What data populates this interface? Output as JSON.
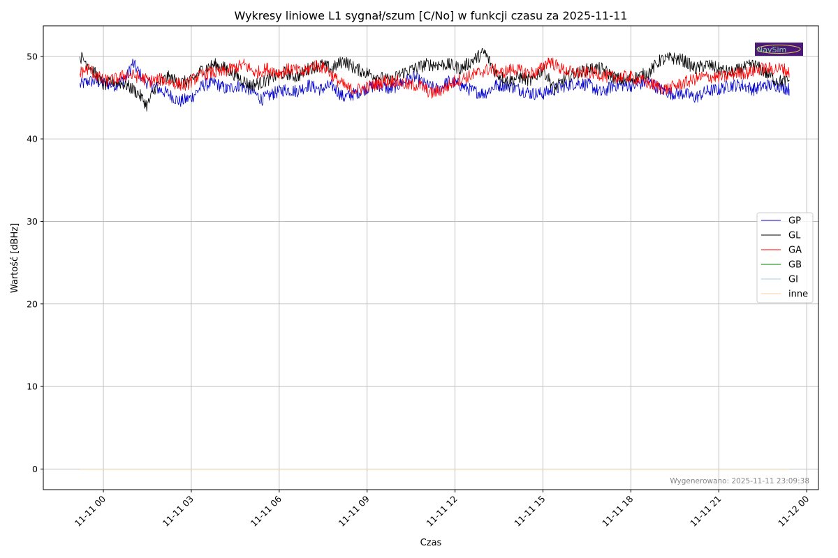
{
  "chart_data": {
    "type": "line",
    "title": "Wykresy liniowe L1 sygnał/szum [C/No] w funkcji czasu za 2025-11-11",
    "xlabel": "Czas",
    "ylabel": "Wartość [dBHz]",
    "x_unit": "hours since 2025-11-11 00:00",
    "xlim_hours": [
      -2.05,
      24.4
    ],
    "ylim": [
      -2.5,
      53.7
    ],
    "x_ticks": [
      {
        "hour": 0,
        "label": "11-11 00"
      },
      {
        "hour": 3,
        "label": "11-11 03"
      },
      {
        "hour": 6,
        "label": "11-11 06"
      },
      {
        "hour": 9,
        "label": "11-11 09"
      },
      {
        "hour": 12,
        "label": "11-11 12"
      },
      {
        "hour": 15,
        "label": "11-11 15"
      },
      {
        "hour": 18,
        "label": "11-11 18"
      },
      {
        "hour": 21,
        "label": "11-11 21"
      },
      {
        "hour": 24,
        "label": "11-12 00"
      }
    ],
    "y_ticks": [
      0,
      10,
      20,
      30,
      40,
      50
    ],
    "grid": true,
    "legend_position": "center-right",
    "series": [
      {
        "name": "GP",
        "color": "#0000cc",
        "x": [
          -0.8,
          -0.5,
          0.0,
          0.4,
          0.8,
          1.0,
          1.4,
          1.8,
          2.2,
          2.6,
          3.0,
          3.4,
          3.8,
          4.2,
          4.6,
          5.0,
          5.4,
          5.8,
          6.2,
          6.6,
          7.0,
          7.4,
          7.8,
          8.2,
          8.6,
          9.0,
          9.4,
          9.8,
          10.2,
          10.6,
          11.0,
          11.4,
          11.8,
          12.2,
          12.6,
          13.0,
          13.4,
          13.8,
          14.2,
          14.6,
          15.0,
          15.4,
          15.8,
          16.2,
          16.6,
          17.0,
          17.4,
          17.8,
          18.2,
          18.6,
          19.0,
          19.4,
          19.8,
          20.2,
          20.6,
          21.0,
          21.4,
          21.8,
          22.2,
          22.6,
          23.0,
          23.4
        ],
        "y": [
          46.5,
          47.0,
          46.8,
          46.5,
          47.5,
          49.2,
          47.0,
          46.2,
          45.5,
          44.5,
          45.0,
          46.5,
          46.8,
          46.0,
          46.5,
          46.0,
          44.8,
          45.5,
          46.0,
          45.8,
          46.5,
          46.0,
          46.5,
          45.0,
          45.5,
          46.2,
          46.5,
          46.0,
          46.8,
          47.5,
          46.5,
          46.0,
          47.0,
          46.5,
          45.8,
          45.5,
          46.5,
          46.5,
          46.0,
          45.5,
          45.5,
          46.0,
          46.5,
          46.8,
          46.5,
          45.5,
          46.5,
          46.5,
          46.5,
          47.0,
          46.0,
          45.5,
          45.5,
          45.0,
          45.8,
          46.0,
          46.5,
          46.5,
          46.0,
          46.5,
          46.5,
          46.0
        ]
      },
      {
        "name": "GL",
        "color": "#000000",
        "x": [
          -0.8,
          -0.5,
          0.0,
          0.4,
          0.8,
          1.2,
          1.5,
          1.8,
          2.2,
          2.6,
          3.0,
          3.4,
          3.8,
          4.2,
          4.6,
          5.0,
          5.4,
          5.8,
          6.2,
          6.6,
          7.0,
          7.4,
          7.8,
          8.2,
          8.6,
          9.0,
          9.4,
          9.8,
          10.2,
          10.6,
          11.0,
          11.4,
          11.8,
          12.2,
          12.6,
          13.0,
          13.4,
          13.8,
          14.2,
          14.6,
          15.0,
          15.4,
          15.8,
          16.2,
          16.6,
          17.0,
          17.4,
          17.8,
          18.2,
          18.6,
          19.0,
          19.4,
          19.8,
          20.2,
          20.6,
          21.0,
          21.4,
          21.8,
          22.2,
          22.6,
          23.0,
          23.4
        ],
        "y": [
          50.0,
          49.0,
          46.5,
          47.0,
          46.5,
          45.5,
          44.0,
          46.5,
          47.5,
          46.8,
          47.0,
          48.5,
          49.0,
          48.5,
          47.5,
          46.5,
          46.8,
          47.5,
          48.0,
          47.5,
          48.5,
          49.0,
          48.5,
          49.5,
          48.5,
          48.0,
          47.5,
          47.0,
          48.0,
          48.5,
          49.0,
          49.0,
          49.0,
          48.5,
          49.5,
          50.5,
          48.0,
          47.0,
          47.5,
          47.0,
          48.5,
          46.0,
          47.5,
          48.0,
          48.5,
          48.5,
          47.5,
          47.0,
          47.5,
          48.0,
          49.5,
          49.8,
          49.5,
          48.5,
          49.0,
          48.5,
          48.0,
          48.5,
          49.0,
          48.0,
          47.0,
          47.0
        ]
      },
      {
        "name": "GA",
        "color": "#ff0000",
        "x": [
          -0.8,
          -0.5,
          0.0,
          0.4,
          0.8,
          1.2,
          1.6,
          2.0,
          2.4,
          2.8,
          3.2,
          3.6,
          4.0,
          4.4,
          4.8,
          5.2,
          5.6,
          6.0,
          6.4,
          6.8,
          7.2,
          7.6,
          8.0,
          8.4,
          8.8,
          9.2,
          9.6,
          10.0,
          10.4,
          10.8,
          11.2,
          11.6,
          12.0,
          12.4,
          12.8,
          13.2,
          13.6,
          14.0,
          14.4,
          14.8,
          15.2,
          15.6,
          16.0,
          16.4,
          16.8,
          17.2,
          17.6,
          18.0,
          18.4,
          18.8,
          19.2,
          19.6,
          20.0,
          20.4,
          20.8,
          21.2,
          21.6,
          22.0,
          22.4,
          22.8,
          23.2,
          23.4
        ],
        "y": [
          48.0,
          48.5,
          47.0,
          47.2,
          47.8,
          47.5,
          47.0,
          47.2,
          46.8,
          46.5,
          47.5,
          48.0,
          48.0,
          48.5,
          49.0,
          48.0,
          48.5,
          48.0,
          48.5,
          48.0,
          49.0,
          48.5,
          47.0,
          46.0,
          46.0,
          46.5,
          47.0,
          47.0,
          46.5,
          46.5,
          45.5,
          46.0,
          47.0,
          47.5,
          48.0,
          48.5,
          48.0,
          48.5,
          48.0,
          48.0,
          49.5,
          48.5,
          48.0,
          48.0,
          48.0,
          47.5,
          47.5,
          47.5,
          47.0,
          46.5,
          46.0,
          46.5,
          47.0,
          47.5,
          47.5,
          47.5,
          48.0,
          48.0,
          48.5,
          48.5,
          48.5,
          48.0
        ]
      },
      {
        "name": "GB",
        "color": "#008000",
        "x": [
          -0.8,
          23.4
        ],
        "y": [
          0,
          0
        ]
      },
      {
        "name": "GI",
        "color": "#a6c8f0",
        "x": [
          -0.8,
          23.4
        ],
        "y": [
          0,
          0
        ]
      },
      {
        "name": "inne",
        "color": "#ffcc99",
        "x": [
          -0.8,
          23.4
        ],
        "y": [
          0,
          0
        ]
      }
    ],
    "annotations": [
      {
        "text": "Wygenerowano: 2025-11-11 23:09:38",
        "position": "bottom-right"
      }
    ]
  },
  "logo": {
    "text": "NavSim",
    "background": "#4b1a78",
    "text_color": "#7fd6a0"
  }
}
